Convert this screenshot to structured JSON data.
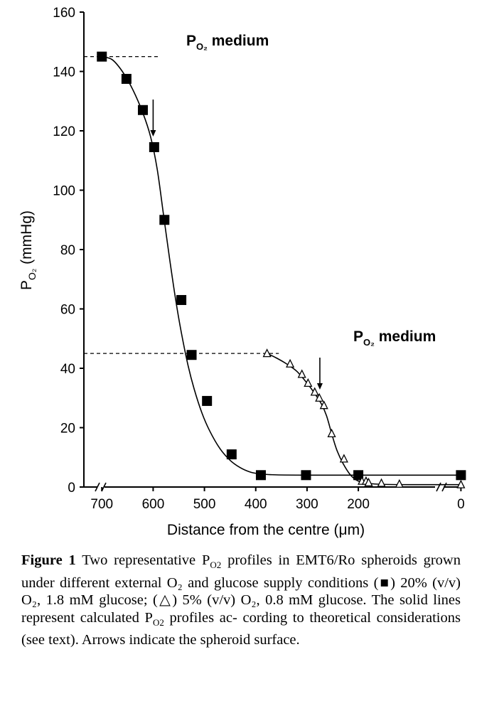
{
  "chart_data": {
    "type": "scatter",
    "xlabel": "Distance from the centre (μm)",
    "ylabel": "P",
    "ylabel_sub": "O₂",
    "ylabel_unit": " (mmHg)",
    "x_reversed": true,
    "xlim": [
      735,
      -5
    ],
    "ylim": [
      0,
      160
    ],
    "x_ticks": [
      700,
      600,
      500,
      400,
      300,
      200,
      0
    ],
    "y_ticks": [
      0,
      20,
      40,
      60,
      80,
      100,
      120,
      140,
      160
    ],
    "x_axis_break": true,
    "grid": false,
    "series": [
      {
        "marker": "filled-square",
        "x": [
          700,
          652,
          620,
          598,
          578,
          545,
          525,
          495,
          447,
          390,
          302,
          200,
          0
        ],
        "y": [
          145,
          137.5,
          127,
          114.5,
          90,
          63,
          44.5,
          29,
          11,
          4,
          4,
          4,
          4
        ],
        "surface_arrow_x": 600,
        "curve": [
          [
            700,
            145
          ],
          [
            680,
            144
          ],
          [
            660,
            140
          ],
          [
            640,
            134
          ],
          [
            620,
            126
          ],
          [
            605,
            118
          ],
          [
            592,
            107
          ],
          [
            580,
            92
          ],
          [
            568,
            77
          ],
          [
            556,
            63
          ],
          [
            545,
            52
          ],
          [
            532,
            41
          ],
          [
            520,
            33
          ],
          [
            505,
            25
          ],
          [
            490,
            19
          ],
          [
            470,
            13
          ],
          [
            450,
            9
          ],
          [
            430,
            6.5
          ],
          [
            410,
            5
          ],
          [
            390,
            4.4
          ],
          [
            360,
            4.1
          ],
          [
            300,
            4
          ],
          [
            200,
            4
          ],
          [
            0,
            4
          ]
        ]
      },
      {
        "marker": "open-triangle",
        "x": [
          378,
          333,
          310,
          298,
          285,
          276,
          267,
          252,
          228,
          193,
          185,
          180,
          155,
          120,
          0
        ],
        "y": [
          45,
          41.5,
          38,
          35,
          32,
          30,
          27.5,
          18,
          9.5,
          2,
          2,
          1.5,
          1.3,
          1,
          0.8
        ],
        "surface_arrow_x": 275,
        "curve": [
          [
            378,
            45
          ],
          [
            360,
            43.5
          ],
          [
            340,
            41.5
          ],
          [
            320,
            39
          ],
          [
            300,
            35
          ],
          [
            285,
            31.5
          ],
          [
            272,
            28
          ],
          [
            262,
            24
          ],
          [
            252,
            18
          ],
          [
            242,
            12.5
          ],
          [
            230,
            8
          ],
          [
            215,
            4
          ],
          [
            200,
            2
          ],
          [
            180,
            1.2
          ],
          [
            150,
            0.9
          ],
          [
            100,
            0.8
          ],
          [
            0,
            0.8
          ]
        ]
      }
    ],
    "reference_lines": [
      {
        "y": 145,
        "x_from": 735,
        "x_to": 590,
        "label_main": "P",
        "label_sub": "O₂",
        "label_rest": " medium"
      },
      {
        "y": 45,
        "x_from": 735,
        "x_to": 355,
        "label_main": "P",
        "label_sub": "O₂",
        "label_rest": " medium"
      }
    ]
  },
  "caption": {
    "label": "Figure 1",
    "lines": [
      "Two representative P_O2 profiles in",
      "EMT6/Ro spheroids grown under different external O₂",
      "and glucose supply conditions (■) 20% (v/v) O₂,",
      "1.8 mM glucose; (△) 5% (v/v) O₂, 0.8 mM glucose.",
      "The solid lines represent calculated P_O2 profiles ac-",
      "cording to theoretical considerations (see text). Arrows",
      "indicate the spheroid surface."
    ]
  }
}
